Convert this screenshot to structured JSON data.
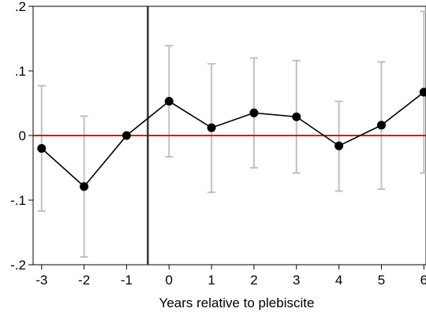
{
  "chart_data": {
    "type": "scatter",
    "title": "",
    "xlabel": "Years relative to plebiscite",
    "ylabel": "",
    "xlim": [
      -3.2,
      6.05
    ],
    "ylim": [
      -0.2,
      0.2
    ],
    "x_ticks": [
      -3,
      -2,
      -1,
      0,
      1,
      2,
      3,
      4,
      5,
      6
    ],
    "x_tick_labels": [
      "-3",
      "-2",
      "-1",
      "0",
      "1",
      "2",
      "3",
      "4",
      "5",
      "6"
    ],
    "y_ticks": [
      0.2,
      0.1,
      0,
      -0.1,
      -0.2
    ],
    "y_tick_labels": [
      ".2",
      ".1",
      "0",
      "-.1",
      "-.2"
    ],
    "grid": false,
    "reference_line_y": 0,
    "reference_line_color": "#e3120b",
    "event_line_x": -0.5,
    "event_line_color": "#333333",
    "series": [
      {
        "x": [
          -3,
          -2,
          -1,
          0,
          1,
          2,
          3,
          4,
          5,
          6
        ],
        "y": [
          -0.02,
          -0.079,
          0.0,
          0.053,
          0.012,
          0.035,
          0.029,
          -0.016,
          0.016,
          0.067
        ],
        "ci_low": [
          -0.117,
          -0.188,
          0.0,
          -0.033,
          -0.088,
          -0.05,
          -0.058,
          -0.086,
          -0.083,
          -0.058
        ],
        "ci_high": [
          0.077,
          0.03,
          0.0,
          0.139,
          0.111,
          0.12,
          0.116,
          0.053,
          0.114,
          0.192
        ],
        "marker_color": "#000000",
        "line_color": "#000000",
        "ci_color": "#c0c0c0"
      }
    ]
  }
}
